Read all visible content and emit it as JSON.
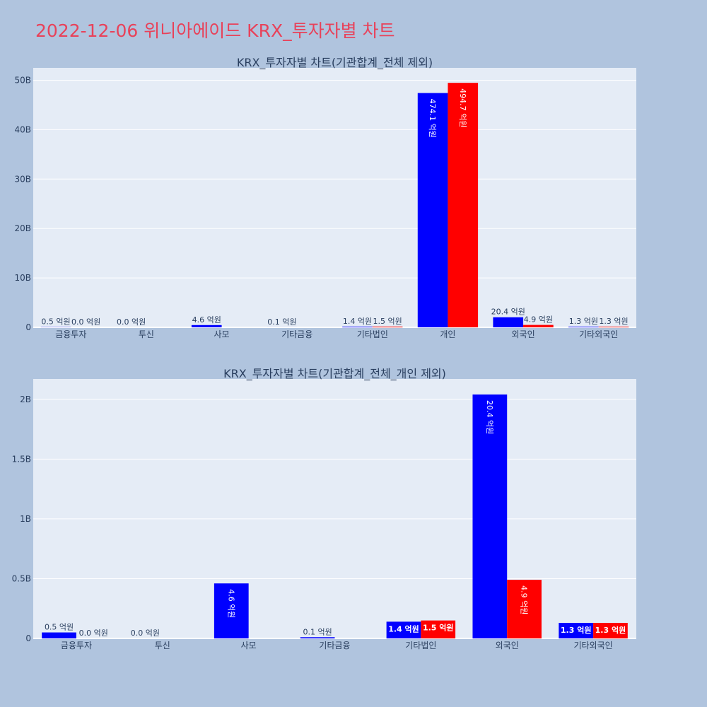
{
  "page_title": "2022-12-06 위니아에이드 KRX_투자자별 차트",
  "colors": {
    "buy": "#0000ff",
    "sell": "#ff0000",
    "plot_bg": "#e5ecf6",
    "paper_bg": "#b0c4de",
    "title": "#e8425a"
  },
  "chart_data": [
    {
      "type": "bar",
      "title": "KRX_투자자별 차트(기관합계_전체 제외)",
      "categories": [
        "금융투자",
        "투신",
        "사모",
        "기타금융",
        "기타법인",
        "개인",
        "외국인",
        "기타외국인"
      ],
      "ylim": [
        0,
        52500000000
      ],
      "y_ticks": [
        0,
        10000000000,
        20000000000,
        30000000000,
        40000000000,
        50000000000
      ],
      "y_tick_labels": [
        "0",
        "10B",
        "20B",
        "30B",
        "40B",
        "50B"
      ],
      "grid": true,
      "series": [
        {
          "color": "#0000ff",
          "values": [
            50000000,
            0,
            460000000,
            10000000,
            140000000,
            47410000000,
            2040000000,
            130000000
          ],
          "labels": [
            "0.5 억원",
            "0.0 억원",
            "4.6 억원",
            "0.1 억원",
            "1.4 억원",
            "474.1 억원",
            "20.4 억원",
            "1.3 억원"
          ]
        },
        {
          "color": "#ff0000",
          "values": [
            0,
            null,
            null,
            null,
            150000000,
            49470000000,
            490000000,
            130000000
          ],
          "labels": [
            "0.0 억원",
            "",
            "",
            "",
            "1.5 억원",
            "494.7 억원",
            "4.9 억원",
            "1.3 억원"
          ]
        }
      ]
    },
    {
      "type": "bar",
      "title": "KRX_투자자별 차트(기관합계_전체_개인 제외)",
      "categories": [
        "금융투자",
        "투신",
        "사모",
        "기타금융",
        "기타법인",
        "외국인",
        "기타외국인"
      ],
      "ylim": [
        0,
        2170000000
      ],
      "y_ticks": [
        0,
        500000000,
        1000000000,
        1500000000,
        2000000000
      ],
      "y_tick_labels": [
        "0",
        "0.5B",
        "1B",
        "1.5B",
        "2B"
      ],
      "grid": true,
      "series": [
        {
          "color": "#0000ff",
          "values": [
            50000000,
            0,
            460000000,
            10000000,
            140000000,
            2040000000,
            130000000
          ],
          "labels": [
            "0.5 억원",
            "0.0 억원",
            "4.6 억원",
            "0.1 억원",
            "1.4 억원",
            "20.4 억원",
            "1.3 억원"
          ]
        },
        {
          "color": "#ff0000",
          "values": [
            0,
            null,
            null,
            null,
            150000000,
            490000000,
            130000000
          ],
          "labels": [
            "0.0 억원",
            "",
            "",
            "",
            "1.5 억원",
            "4.9 억원",
            "1.3 억원"
          ]
        }
      ]
    }
  ]
}
